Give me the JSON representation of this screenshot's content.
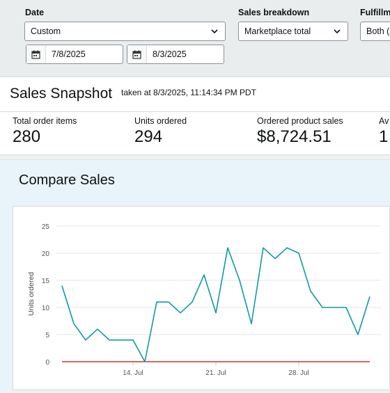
{
  "filters": {
    "date": {
      "label": "Date",
      "selected": "Custom",
      "start": "7/8/2025",
      "end": "8/3/2025"
    },
    "sales_breakdown": {
      "label": "Sales breakdown",
      "selected": "Marketplace total"
    },
    "fulfillment": {
      "label": "Fulfillm",
      "selected": "Both (A"
    }
  },
  "snapshot": {
    "title": "Sales Snapshot",
    "taken_at": "taken at 8/3/2025, 11:14:34 PM PDT",
    "metrics": [
      {
        "label": "Total order items",
        "value": "280"
      },
      {
        "label": "Units ordered",
        "value": "294"
      },
      {
        "label": "Ordered product sales",
        "value": "$8,724.51"
      },
      {
        "label": "Av",
        "value": "1"
      }
    ]
  },
  "compare": {
    "title": "Compare Sales"
  },
  "chart_data": {
    "type": "line",
    "ylabel": "Units ordered",
    "xlabel": "",
    "ylim": [
      0,
      25
    ],
    "yticks": [
      0,
      5,
      10,
      15,
      20,
      25
    ],
    "grid": true,
    "x": [
      "2025-07-08",
      "2025-07-09",
      "2025-07-10",
      "2025-07-11",
      "2025-07-12",
      "2025-07-13",
      "2025-07-14",
      "2025-07-15",
      "2025-07-16",
      "2025-07-17",
      "2025-07-18",
      "2025-07-19",
      "2025-07-20",
      "2025-07-21",
      "2025-07-22",
      "2025-07-23",
      "2025-07-24",
      "2025-07-25",
      "2025-07-26",
      "2025-07-27",
      "2025-07-28",
      "2025-07-29",
      "2025-07-30",
      "2025-07-31",
      "2025-08-01",
      "2025-08-02",
      "2025-08-03"
    ],
    "x_tick_labels": [
      {
        "x": "2025-07-14",
        "label": "14. Jul"
      },
      {
        "x": "2025-07-21",
        "label": "21. Jul"
      },
      {
        "x": "2025-07-28",
        "label": "28. Jul"
      }
    ],
    "series": [
      {
        "color": "#0d9aa6",
        "values": [
          14,
          7,
          4,
          6,
          4,
          4,
          4,
          0,
          11,
          11,
          9,
          11,
          16,
          9,
          21,
          15,
          7,
          21,
          19,
          21,
          20,
          13,
          10,
          10,
          10,
          5,
          12
        ]
      },
      {
        "color": "#d0302f",
        "values": [
          0,
          0,
          0,
          0,
          0,
          0,
          0,
          0,
          0,
          0,
          0,
          0,
          0,
          0,
          0,
          0,
          0,
          0,
          0,
          0,
          0,
          0,
          0,
          0,
          0,
          0,
          0
        ]
      }
    ]
  }
}
